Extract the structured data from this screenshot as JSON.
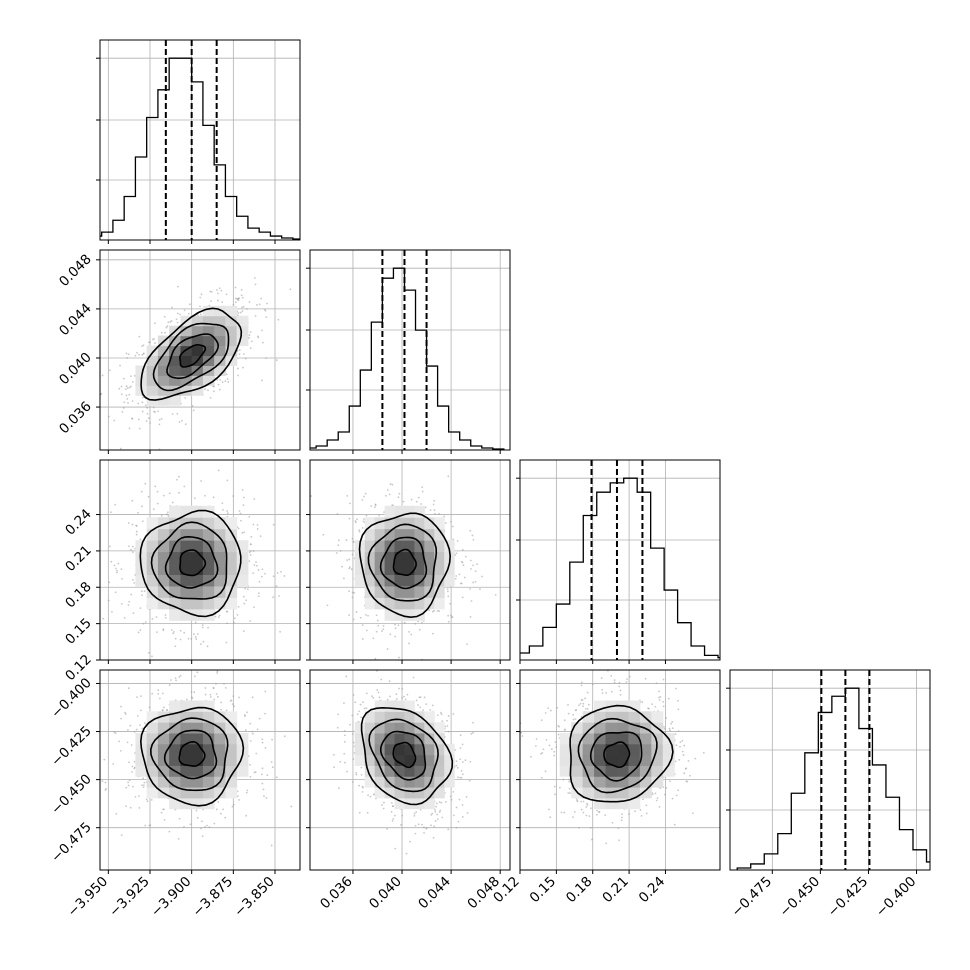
{
  "chart_data": {
    "type": "scatter",
    "subtype": "corner",
    "n_params": 4,
    "grid": true,
    "quantiles": [
      0.16,
      0.5,
      0.84
    ],
    "params": [
      {
        "range": [
          -3.955,
          -3.835
        ],
        "ticks": [
          -3.95,
          -3.925,
          -3.9,
          -3.875,
          -3.85
        ],
        "tick_labels": [
          "−3.950",
          "−3.925",
          "−3.900",
          "−3.875",
          "−3.850"
        ],
        "mean": -3.9,
        "sd": 0.015,
        "quantile_values": [
          -3.9155,
          -3.9,
          -3.885
        ],
        "hist": [
          1,
          2,
          4,
          10,
          22,
          42,
          62,
          76,
          92,
          92,
          80,
          58,
          38,
          22,
          12,
          6,
          4,
          2,
          1,
          0.5
        ]
      },
      {
        "range": [
          0.0325,
          0.0488
        ],
        "ticks": [
          0.036,
          0.04,
          0.044,
          0.048
        ],
        "tick_labels": [
          "0.036",
          "0.040",
          "0.044",
          "0.048"
        ],
        "mean": 0.0402,
        "sd": 0.0018,
        "quantile_values": [
          0.0384,
          0.0402,
          0.042
        ],
        "hist": [
          1,
          2,
          5,
          9,
          22,
          40,
          64,
          86,
          91,
          80,
          60,
          42,
          22,
          9,
          5,
          2,
          1,
          0.5
        ]
      },
      {
        "range": [
          0.12,
          0.285
        ],
        "ticks": [
          0.12,
          0.15,
          0.18,
          0.21,
          0.24
        ],
        "tick_labels": [
          "0.12",
          "0.15",
          "0.18",
          "0.21",
          "0.24"
        ],
        "mean": 0.2,
        "sd": 0.021,
        "quantile_values": [
          0.179,
          0.2,
          0.221
        ],
        "hist": [
          1,
          3,
          6,
          14,
          24,
          42,
          62,
          72,
          76,
          78,
          72,
          48,
          30,
          16,
          6,
          2,
          1
        ]
      },
      {
        "range": [
          -0.497,
          -0.393
        ],
        "ticks": [
          -0.475,
          -0.45,
          -0.425,
          -0.4
        ],
        "tick_labels": [
          "−0.475",
          "−0.450",
          "−0.425",
          "−0.400"
        ],
        "mean": -0.437,
        "sd": 0.0125,
        "quantile_values": [
          -0.4495,
          -0.437,
          -0.4245
        ],
        "hist": [
          1,
          3,
          8,
          18,
          38,
          58,
          78,
          86,
          90,
          70,
          52,
          36,
          20,
          10,
          4,
          1.5
        ]
      }
    ],
    "correlations": {
      "1-0": 0.55,
      "2-0": 0,
      "2-1": 0,
      "3-0": 0,
      "3-1": -0.25,
      "3-2": 0.05
    }
  }
}
